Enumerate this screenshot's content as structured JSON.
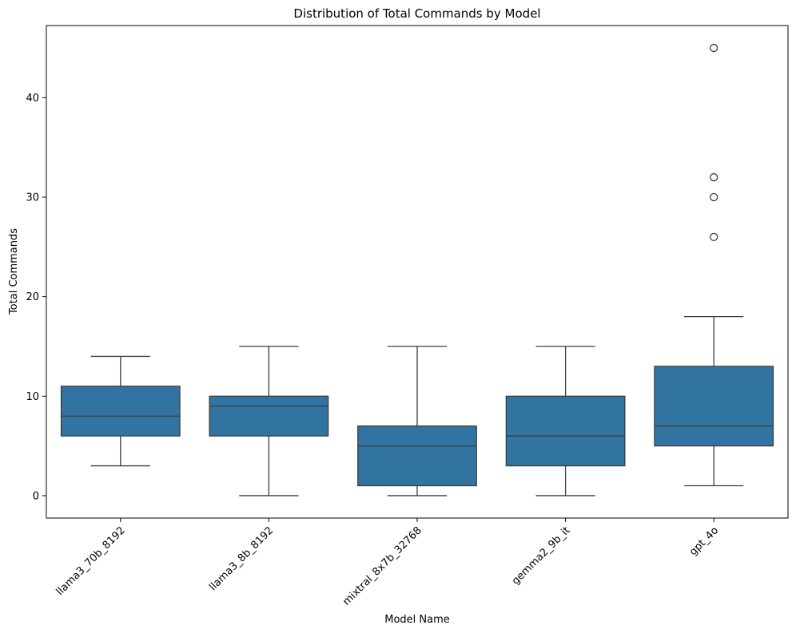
{
  "chart_data": {
    "type": "box",
    "title": "Distribution of Total Commands by Model",
    "xlabel": "Model Name",
    "ylabel": "Total Commands",
    "ylim": [
      -2.25,
      47.25
    ],
    "yticks": [
      0,
      10,
      20,
      30,
      40
    ],
    "grid": false,
    "legend": "none",
    "box_color": "#3274a1",
    "line_color": "#3d3d3d",
    "categories": [
      "llama3_70b_8192",
      "llama3_8b_8192",
      "mixtral_8x7b_32768",
      "gemma2_9b_it",
      "gpt_4o"
    ],
    "boxes": [
      {
        "category": "llama3_70b_8192",
        "whisker_low": 3,
        "q1": 6,
        "median": 8,
        "q3": 11,
        "whisker_high": 14,
        "outliers": []
      },
      {
        "category": "llama3_8b_8192",
        "whisker_low": 0,
        "q1": 6,
        "median": 9,
        "q3": 10,
        "whisker_high": 15,
        "outliers": []
      },
      {
        "category": "mixtral_8x7b_32768",
        "whisker_low": 0,
        "q1": 1,
        "median": 5,
        "q3": 7,
        "whisker_high": 15,
        "outliers": []
      },
      {
        "category": "gemma2_9b_it",
        "whisker_low": 0,
        "q1": 3,
        "median": 6,
        "q3": 10,
        "whisker_high": 15,
        "outliers": []
      },
      {
        "category": "gpt_4o",
        "whisker_low": 1,
        "q1": 5,
        "median": 7,
        "q3": 13,
        "whisker_high": 18,
        "outliers": [
          26,
          30,
          32,
          45
        ]
      }
    ]
  }
}
